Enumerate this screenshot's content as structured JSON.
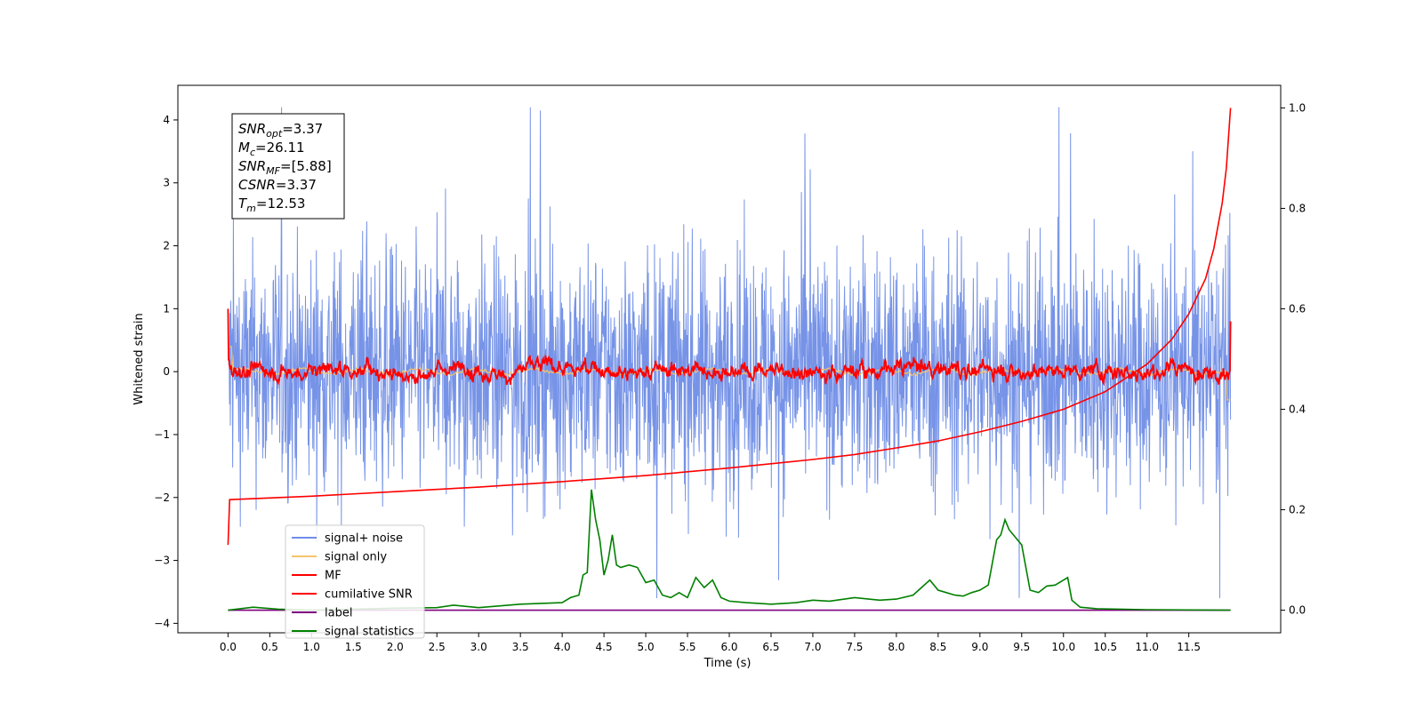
{
  "chart_data": {
    "type": "line",
    "xlabel": "Time (s)",
    "ylabel": "Whitened strain",
    "xlim": [
      -0.6,
      12.6
    ],
    "ylim": [
      -4.15,
      4.55
    ],
    "y2lim": [
      -0.045,
      1.045
    ],
    "x_ticks": [
      "0.0",
      "0.5",
      "1.0",
      "1.5",
      "2.0",
      "2.5",
      "3.0",
      "3.5",
      "4.0",
      "4.5",
      "5.0",
      "5.5",
      "6.0",
      "6.5",
      "7.0",
      "7.5",
      "8.0",
      "8.5",
      "9.0",
      "9.5",
      "10.0",
      "10.5",
      "11.0",
      "11.5"
    ],
    "y_ticks": [
      "4",
      "3",
      "2",
      "1",
      "0",
      "−1",
      "−2",
      "−3",
      "−4"
    ],
    "y2_ticks": [
      "1.0",
      "0.8",
      "0.6",
      "0.4",
      "0.2",
      "0.0"
    ],
    "grid": false,
    "legend_position": "lower-left",
    "annotations": [
      {
        "name": "SNR",
        "sub": "opt",
        "value": "=3.37"
      },
      {
        "name": "M",
        "sub": "c",
        "value": "=26.11"
      },
      {
        "name": "SNR",
        "sub": "MF",
        "value": "=[5.88]"
      },
      {
        "name": "CSNR",
        "sub": "",
        "value": "=3.37"
      },
      {
        "name": "T",
        "sub": "m",
        "value": "=12.53"
      }
    ],
    "series": [
      {
        "name": "signal+ noise",
        "color": "#6f8de6",
        "axis": "left",
        "style": "noise band",
        "x_range": [
          0.0,
          12.0
        ],
        "approx_range": [
          -3.6,
          4.2
        ]
      },
      {
        "name": "signal only",
        "color": "#f5c36b",
        "axis": "left",
        "style": "near zero",
        "x_range": [
          0.0,
          12.0
        ],
        "approx_range": [
          -0.5,
          0.45
        ]
      },
      {
        "name": "MF",
        "color": "#ff0000",
        "axis": "left",
        "style": "noisy trace",
        "x_range": [
          0.0,
          12.0
        ],
        "approx_range": [
          -0.3,
          0.6
        ]
      },
      {
        "name": "cumilative SNR",
        "color": "#ff0000",
        "axis": "right",
        "x": [
          0.0,
          0.02,
          1.0,
          2.0,
          3.0,
          4.0,
          5.0,
          6.0,
          7.0,
          7.5,
          8.0,
          8.5,
          9.0,
          9.5,
          10.0,
          10.5,
          11.0,
          11.3,
          11.5,
          11.7,
          11.8,
          11.9,
          11.95,
          12.0
        ],
        "values": [
          0.13,
          0.22,
          0.227,
          0.236,
          0.245,
          0.256,
          0.268,
          0.283,
          0.3,
          0.31,
          0.323,
          0.337,
          0.355,
          0.376,
          0.4,
          0.435,
          0.49,
          0.54,
          0.59,
          0.66,
          0.72,
          0.81,
          0.88,
          1.0
        ]
      },
      {
        "name": "label",
        "color": "#800080",
        "axis": "right",
        "x": [
          0.0,
          12.0
        ],
        "values": [
          0.0,
          0.0
        ]
      },
      {
        "name": "signal statistics",
        "color": "#008000",
        "axis": "right",
        "x": [
          0.0,
          0.3,
          0.6,
          1.0,
          1.5,
          2.0,
          2.5,
          2.7,
          3.0,
          3.5,
          4.0,
          4.1,
          4.2,
          4.25,
          4.3,
          4.35,
          4.4,
          4.45,
          4.5,
          4.55,
          4.6,
          4.65,
          4.7,
          4.8,
          4.9,
          5.0,
          5.1,
          5.2,
          5.3,
          5.4,
          5.5,
          5.6,
          5.7,
          5.8,
          5.9,
          6.0,
          6.2,
          6.5,
          6.8,
          7.0,
          7.2,
          7.5,
          7.8,
          8.0,
          8.2,
          8.3,
          8.4,
          8.5,
          8.6,
          8.7,
          8.8,
          8.9,
          9.0,
          9.1,
          9.2,
          9.25,
          9.3,
          9.35,
          9.4,
          9.5,
          9.6,
          9.7,
          9.8,
          9.9,
          10.0,
          10.05,
          10.1,
          10.2,
          10.4,
          11.0,
          12.0
        ],
        "values": [
          0.0,
          0.006,
          0.002,
          0.0,
          0.002,
          0.004,
          0.005,
          0.01,
          0.005,
          0.012,
          0.015,
          0.025,
          0.03,
          0.07,
          0.075,
          0.24,
          0.18,
          0.14,
          0.07,
          0.1,
          0.15,
          0.09,
          0.085,
          0.09,
          0.085,
          0.055,
          0.06,
          0.03,
          0.025,
          0.035,
          0.025,
          0.065,
          0.045,
          0.06,
          0.025,
          0.018,
          0.015,
          0.012,
          0.015,
          0.02,
          0.018,
          0.025,
          0.02,
          0.022,
          0.03,
          0.045,
          0.06,
          0.04,
          0.035,
          0.03,
          0.028,
          0.035,
          0.04,
          0.05,
          0.14,
          0.15,
          0.18,
          0.16,
          0.15,
          0.13,
          0.04,
          0.035,
          0.048,
          0.05,
          0.06,
          0.065,
          0.02,
          0.006,
          0.003,
          0.001,
          0.0
        ]
      }
    ]
  }
}
